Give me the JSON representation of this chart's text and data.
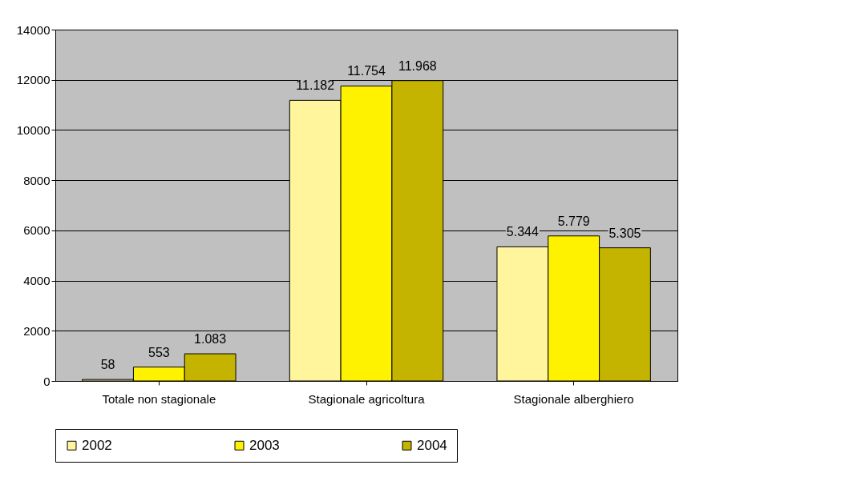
{
  "chart_data": {
    "type": "bar",
    "categories": [
      "Totale non stagionale",
      "Stagionale agricoltura",
      "Stagionale alberghiero"
    ],
    "series": [
      {
        "name": "2002",
        "color": "#fff59d",
        "values": [
          58,
          11182,
          5344
        ],
        "value_labels": [
          "58",
          "11.182",
          "5.344"
        ]
      },
      {
        "name": "2003",
        "color": "#fff200",
        "values": [
          553,
          11754,
          5779
        ],
        "value_labels": [
          "553",
          "11.754",
          "5.779"
        ]
      },
      {
        "name": "2004",
        "color": "#c4b400",
        "values": [
          1083,
          11968,
          5305
        ],
        "value_labels": [
          "1.083",
          "11.968",
          "5.305"
        ]
      }
    ],
    "ylim": [
      0,
      14000
    ],
    "yticks": [
      0,
      2000,
      4000,
      6000,
      8000,
      10000,
      12000,
      14000
    ],
    "grid": "y",
    "legend": "bottom"
  }
}
